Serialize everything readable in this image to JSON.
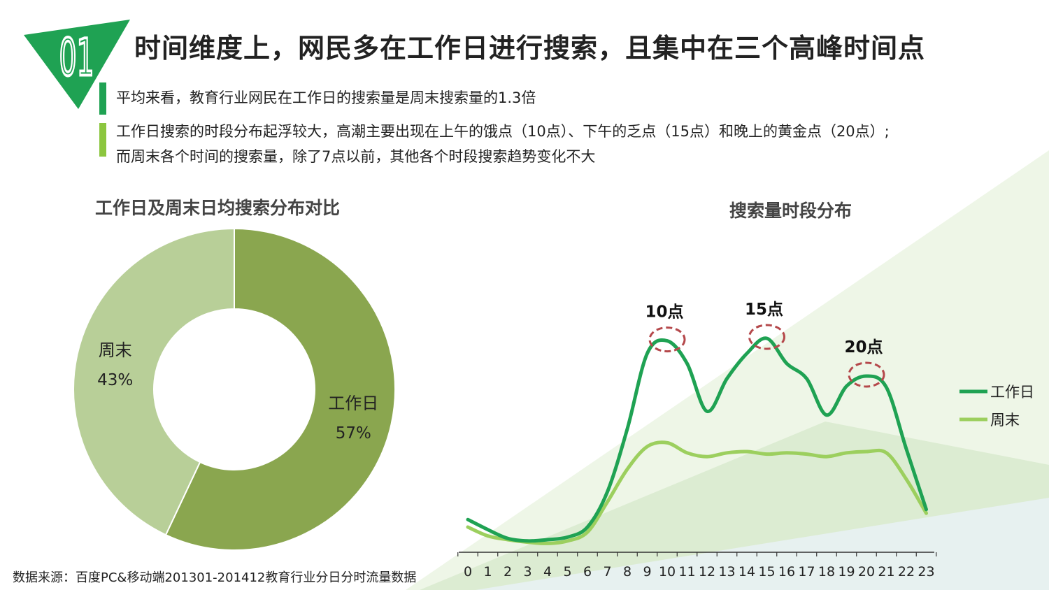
{
  "header": {
    "badge_number": "01",
    "title": "时间维度上，网民多在工作日进行搜索，且集中在三个高峰时间点"
  },
  "bullets": [
    "平均来看，教育行业网民在工作日的搜索量是周末搜索量的1.3倍",
    "工作日搜索的时段分布起浮较大，高潮主要出现在上午的饿点（10点）、下午的乏点（15点）和晚上的黄金点（20点）;",
    "而周末各个时间的搜索量，除了7点以前，其他各个时段搜索趋势变化不大"
  ],
  "source": "数据来源：百度PC&移动端201301-201412教育行业分日分时流量数据",
  "colors": {
    "brand_green": "#1fa253",
    "light_green": "#8cc63f",
    "donut_workday": "#8aa64f",
    "donut_weekend": "#b8cf98",
    "peak_circle": "#b5484b"
  },
  "chart_data": [
    {
      "type": "pie",
      "title": "工作日及周末日均搜索分布对比",
      "donut": true,
      "slices": [
        {
          "label": "工作日",
          "value": 57,
          "display": "57%"
        },
        {
          "label": "周末",
          "value": 43,
          "display": "43%"
        }
      ]
    },
    {
      "type": "line",
      "title": "搜索量时段分布",
      "x": [
        "0",
        "1",
        "2",
        "3",
        "4",
        "5",
        "6",
        "7",
        "8",
        "9",
        "10",
        "11",
        "12",
        "13",
        "14",
        "15",
        "16",
        "17",
        "18",
        "19",
        "20",
        "21",
        "22",
        "23"
      ],
      "series": [
        {
          "name": "工作日",
          "color": "#1fa253",
          "values": [
            26,
            18,
            11,
            9,
            10,
            12,
            20,
            48,
            98,
            158,
            168,
            150,
            112,
            138,
            158,
            170,
            150,
            138,
            109,
            132,
            140,
            131,
            82,
            34
          ]
        },
        {
          "name": "周末",
          "color": "#9ccf5e",
          "values": [
            20,
            13,
            10,
            8,
            7,
            9,
            16,
            40,
            66,
            84,
            87,
            79,
            76,
            79,
            80,
            78,
            79,
            78,
            76,
            79,
            80,
            79,
            58,
            31
          ]
        }
      ],
      "ylim": [
        0,
        200
      ],
      "legend": "right",
      "grid": false,
      "annotations": [
        {
          "x": "10",
          "text": "10点"
        },
        {
          "x": "15",
          "text": "15点"
        },
        {
          "x": "20",
          "text": "20点"
        }
      ]
    }
  ]
}
